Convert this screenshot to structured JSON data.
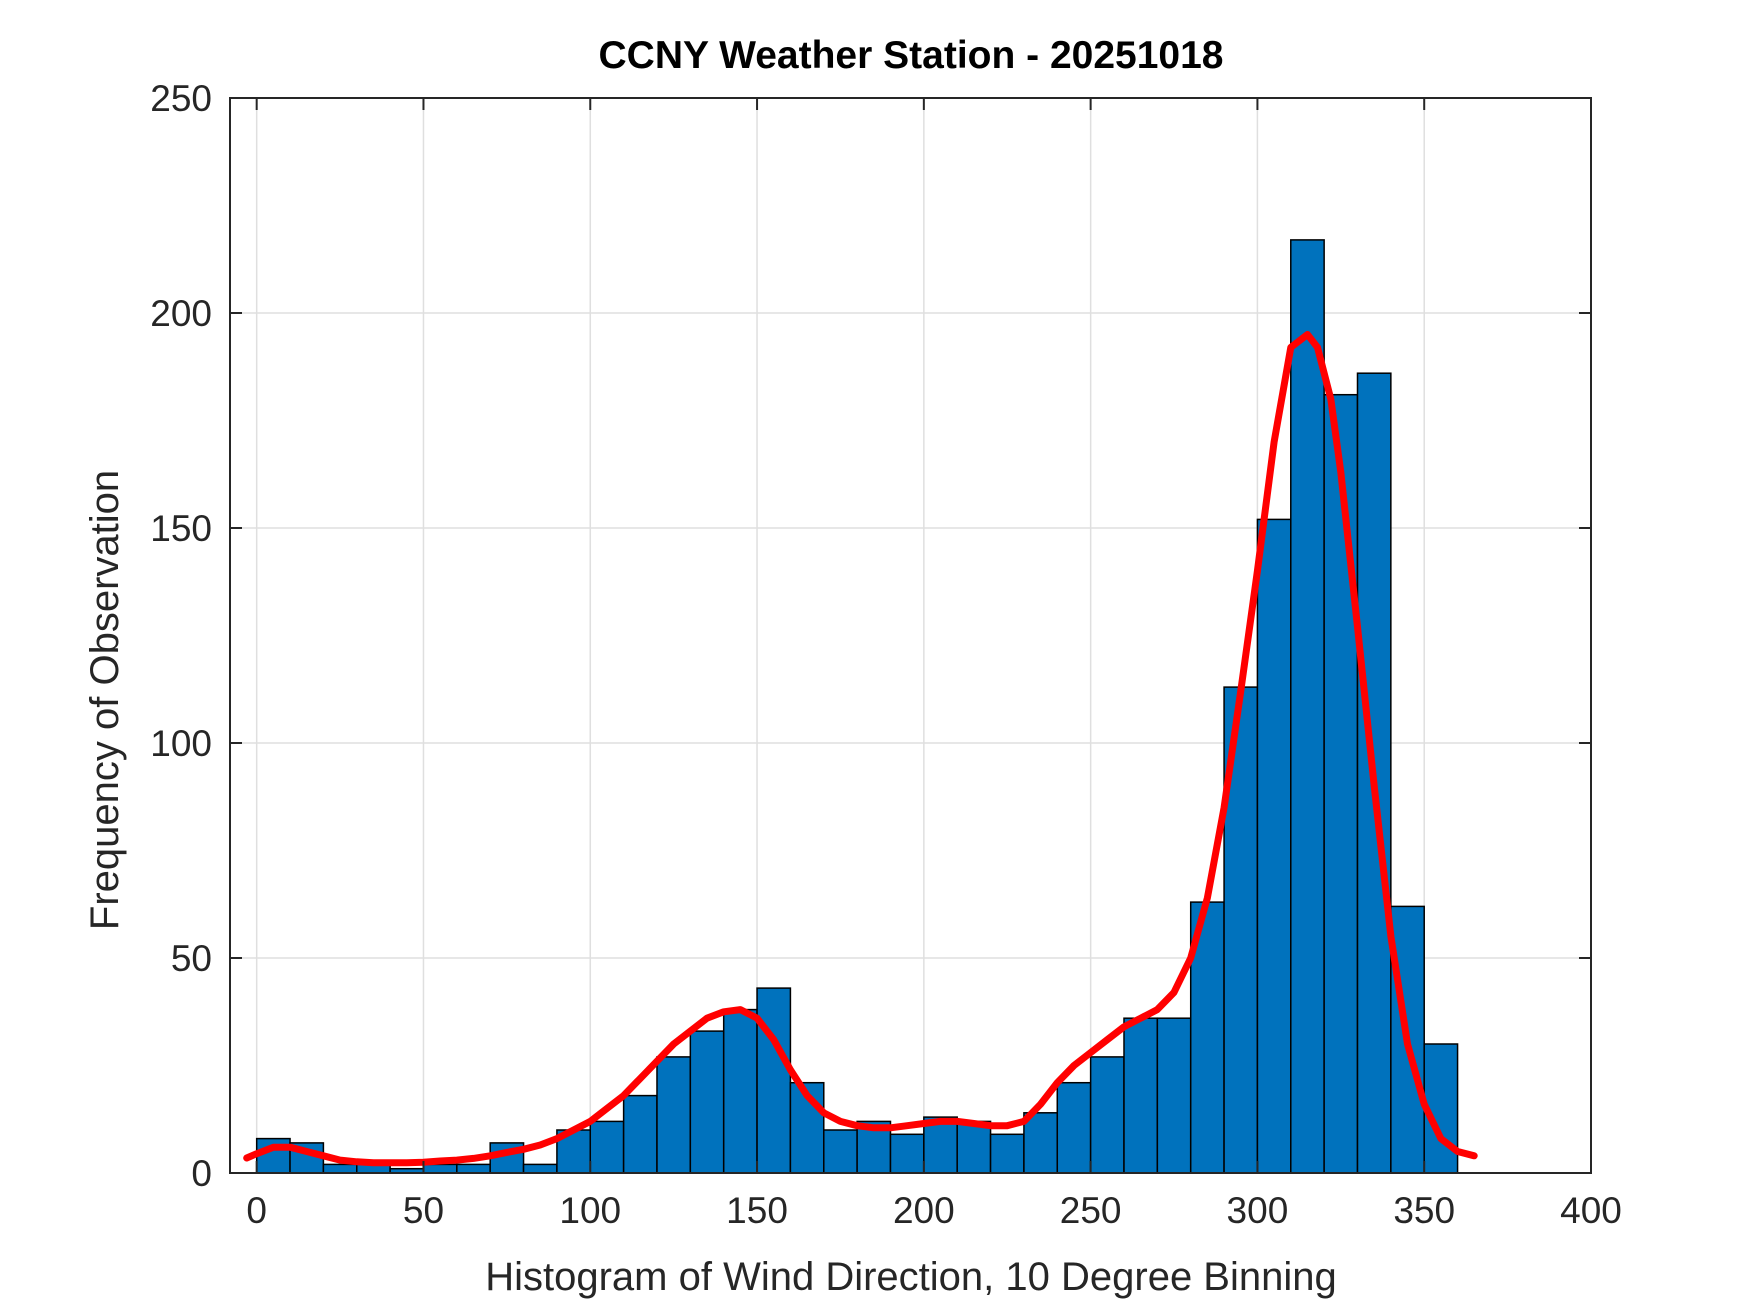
{
  "chart_data": {
    "type": "bar",
    "title": "CCNY Weather Station - 20251018",
    "xlabel": "Histogram of Wind Direction, 10 Degree Binning",
    "ylabel": "Frequency of Observation",
    "xlim": [
      -8,
      400
    ],
    "ylim": [
      0,
      250
    ],
    "xticks": [
      0,
      50,
      100,
      150,
      200,
      250,
      300,
      350,
      400
    ],
    "yticks": [
      0,
      50,
      100,
      150,
      200,
      250
    ],
    "grid": true,
    "bin_width": 10,
    "bin_edges": [
      0,
      10,
      20,
      30,
      40,
      50,
      60,
      70,
      80,
      90,
      100,
      110,
      120,
      130,
      140,
      150,
      160,
      170,
      180,
      190,
      200,
      210,
      220,
      230,
      240,
      250,
      260,
      270,
      280,
      290,
      300,
      310,
      320,
      330,
      340,
      350,
      360
    ],
    "values": [
      8,
      7,
      2,
      2,
      1,
      2,
      2,
      7,
      2,
      10,
      12,
      18,
      27,
      33,
      38,
      43,
      21,
      10,
      12,
      9,
      13,
      12,
      9,
      14,
      21,
      27,
      36,
      36,
      63,
      113,
      152,
      217,
      181,
      186,
      62,
      30
    ],
    "bar_color": "#0072BD",
    "density_curve": {
      "color": "#FF0000",
      "x": [
        -3,
        0,
        5,
        10,
        15,
        20,
        25,
        30,
        35,
        40,
        45,
        50,
        55,
        60,
        65,
        70,
        75,
        80,
        85,
        90,
        95,
        100,
        105,
        110,
        115,
        120,
        125,
        130,
        135,
        140,
        145,
        150,
        155,
        160,
        165,
        170,
        175,
        180,
        185,
        190,
        195,
        200,
        205,
        210,
        215,
        220,
        225,
        230,
        235,
        240,
        245,
        250,
        255,
        260,
        265,
        270,
        275,
        280,
        285,
        290,
        295,
        300,
        305,
        310,
        315,
        318,
        322,
        325,
        330,
        335,
        340,
        345,
        350,
        355,
        360,
        365
      ],
      "y": [
        3.5,
        4.5,
        6,
        6,
        5,
        4,
        3,
        2.6,
        2.4,
        2.4,
        2.4,
        2.5,
        2.8,
        3,
        3.4,
        4,
        4.8,
        5.5,
        6.5,
        8,
        10,
        12,
        15,
        18,
        22,
        26,
        30,
        33,
        36,
        37.5,
        38,
        36,
        31,
        24,
        18,
        14,
        12,
        11,
        10.5,
        10.5,
        11,
        11.5,
        12,
        12,
        11.5,
        11,
        11,
        12,
        16,
        21,
        25,
        28,
        31,
        34,
        36,
        38,
        42,
        50,
        64,
        85,
        112,
        140,
        170,
        192,
        195,
        192,
        180,
        163,
        127,
        90,
        55,
        30,
        16,
        8,
        5,
        4
      ]
    }
  }
}
